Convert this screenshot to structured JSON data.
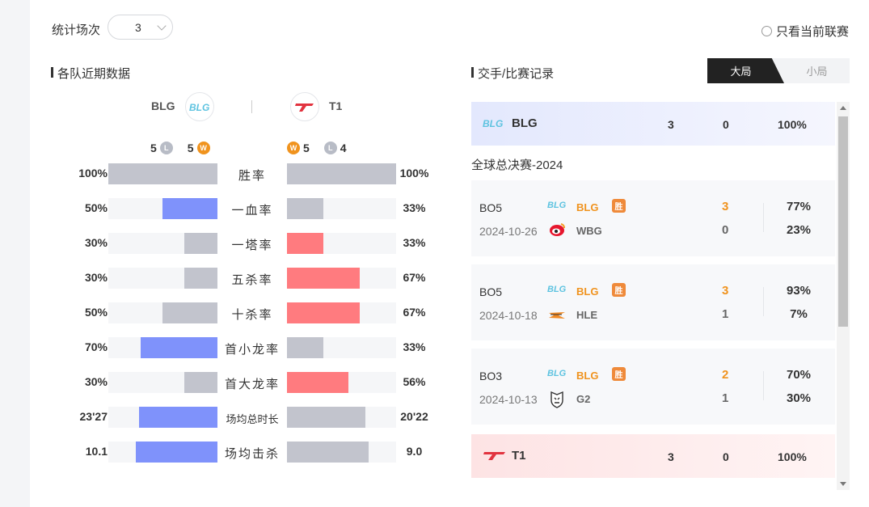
{
  "filters": {
    "count_label": "统计场次",
    "count_value": "3",
    "only_current_label": "只看当前联赛"
  },
  "left": {
    "title": "各队近期数据",
    "team_a": {
      "name": "BLG",
      "losses": "5",
      "wins": "5"
    },
    "team_b": {
      "name": "T1",
      "wins": "5",
      "losses": "4"
    },
    "rows": [
      {
        "label": "胜率",
        "left": "100%",
        "right": "100%",
        "left_frac": 1.0,
        "right_frac": 1.0,
        "left_color": "#c2c4cd",
        "right_color": "#c2c4cd"
      },
      {
        "label": "一血率",
        "left": "50%",
        "right": "33%",
        "left_frac": 0.5,
        "right_frac": 0.33,
        "left_color": "#7f92fb",
        "right_color": "#c2c4cd"
      },
      {
        "label": "一塔率",
        "left": "30%",
        "right": "33%",
        "left_frac": 0.3,
        "right_frac": 0.33,
        "left_color": "#c2c4cd",
        "right_color": "#ff7b7f"
      },
      {
        "label": "五杀率",
        "left": "30%",
        "right": "67%",
        "left_frac": 0.3,
        "right_frac": 0.67,
        "left_color": "#c2c4cd",
        "right_color": "#ff7b7f"
      },
      {
        "label": "十杀率",
        "left": "50%",
        "right": "67%",
        "left_frac": 0.5,
        "right_frac": 0.67,
        "left_color": "#c2c4cd",
        "right_color": "#ff7b7f"
      },
      {
        "label": "首小龙率",
        "left": "70%",
        "right": "33%",
        "left_frac": 0.7,
        "right_frac": 0.33,
        "left_color": "#7f92fb",
        "right_color": "#c2c4cd"
      },
      {
        "label": "首大龙率",
        "left": "30%",
        "right": "56%",
        "left_frac": 0.3,
        "right_frac": 0.56,
        "left_color": "#c2c4cd",
        "right_color": "#ff7b7f"
      },
      {
        "label": "场均总时长",
        "left": "23'27",
        "right": "20'22",
        "left_frac": 0.72,
        "right_frac": 0.72,
        "left_color": "#7f92fb",
        "right_color": "#c2c4cd"
      },
      {
        "label": "场均击杀",
        "left": "10.1",
        "right": "9.0",
        "left_frac": 0.75,
        "right_frac": 0.75,
        "left_color": "#7f92fb",
        "right_color": "#c2c4cd"
      }
    ]
  },
  "right": {
    "title": "交手/比赛记录",
    "tab_big": "大局",
    "tab_small": "小局",
    "blg_band": {
      "name": "BLG",
      "wins": "3",
      "losses": "0",
      "pct": "100%"
    },
    "event_title": "全球总决赛-2024",
    "matches": [
      {
        "bo": "BO5",
        "date": "2024-10-26",
        "team1": "BLG",
        "team2": "WBG",
        "win_tag": "胜",
        "score1": "3",
        "score2": "0",
        "pct1": "77%",
        "pct2": "23%"
      },
      {
        "bo": "BO5",
        "date": "2024-10-18",
        "team1": "BLG",
        "team2": "HLE",
        "win_tag": "胜",
        "score1": "3",
        "score2": "1",
        "pct1": "93%",
        "pct2": "7%"
      },
      {
        "bo": "BO3",
        "date": "2024-10-13",
        "team1": "BLG",
        "team2": "G2",
        "win_tag": "胜",
        "score1": "2",
        "score2": "1",
        "pct1": "70%",
        "pct2": "30%"
      }
    ],
    "t1_band": {
      "name": "T1",
      "wins": "3",
      "losses": "0",
      "pct": "100%"
    }
  },
  "badges": {
    "w": "W",
    "l": "L",
    "p": "%"
  },
  "icons": {
    "blg_logo": "blg-logo-icon",
    "t1_logo": "t1-logo-icon",
    "wbg_logo": "wbg-logo-icon",
    "hle_logo": "hle-logo-icon",
    "g2_logo": "g2-logo-icon"
  }
}
